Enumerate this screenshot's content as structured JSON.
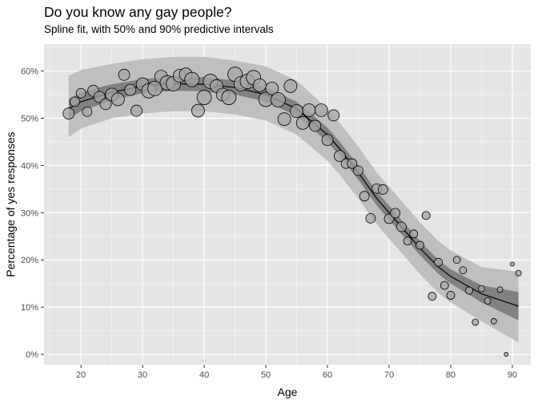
{
  "chart_data": {
    "type": "scatter",
    "title": "Do you know any gay people?",
    "subtitle": "Spline fit, with 50% and 90% predictive intervals",
    "xlabel": "Age",
    "ylabel": "Percentage of yes responses",
    "xlim": [
      14,
      93
    ],
    "ylim": [
      -2.2,
      65.7
    ],
    "x_ticks": [
      20,
      30,
      40,
      50,
      60,
      70,
      80,
      90
    ],
    "x_tick_labels": [
      "20",
      "30",
      "40",
      "50",
      "60",
      "70",
      "80",
      "90"
    ],
    "y_ticks": [
      0,
      10,
      20,
      30,
      40,
      50,
      60
    ],
    "y_tick_labels": [
      "0%",
      "10%",
      "20%",
      "30%",
      "40%",
      "50%",
      "60%"
    ],
    "grid": true,
    "background": "#e5e5e5",
    "grid_color": "#ffffff",
    "point_fill": "#a6a6a6",
    "point_stroke": "#000000",
    "band_50_color": "#7a7a7a",
    "band_90_color": "#bdbdbd",
    "fit_color": "#000000",
    "fit": {
      "x": [
        18,
        20,
        25,
        30,
        35,
        40,
        45,
        50,
        55,
        60,
        62,
        65,
        68,
        70,
        72,
        75,
        78,
        80,
        85,
        91
      ],
      "y": [
        52,
        53.5,
        55.5,
        56.8,
        57.3,
        57.2,
        56.5,
        55,
        52,
        46.5,
        43.5,
        38.5,
        33,
        30,
        27,
        22.5,
        18.5,
        16.5,
        12.8,
        10.2
      ],
      "lo50": [
        50,
        51.5,
        53.8,
        55.3,
        55.8,
        55.7,
        55,
        53.5,
        50.5,
        45,
        42,
        37,
        31.5,
        28.5,
        25.5,
        21,
        17,
        15,
        11,
        7.2
      ],
      "hi50": [
        54,
        55.5,
        57.2,
        58.3,
        58.8,
        58.7,
        58,
        56.5,
        53.5,
        48,
        45,
        40,
        34.5,
        31.5,
        28.5,
        24,
        20,
        18,
        14.6,
        13.2
      ],
      "lo90": [
        46,
        47.8,
        50,
        51,
        51.5,
        51.5,
        50.8,
        49.5,
        46.5,
        41,
        38,
        33,
        27.5,
        24.5,
        21.5,
        17,
        13,
        11,
        7,
        2.5
      ],
      "hi90": [
        59,
        60.2,
        61.5,
        62.5,
        63,
        63,
        62.2,
        61,
        58,
        52,
        49,
        44,
        38.5,
        35.5,
        32.5,
        28,
        24,
        22,
        18.5,
        17.5
      ]
    },
    "points": [
      {
        "x": 18,
        "y": 51,
        "s": 7
      },
      {
        "x": 19,
        "y": 53.5,
        "s": 6
      },
      {
        "x": 20,
        "y": 55.3,
        "s": 6
      },
      {
        "x": 21,
        "y": 51.4,
        "s": 6
      },
      {
        "x": 22,
        "y": 55.8,
        "s": 7
      },
      {
        "x": 23,
        "y": 54.5,
        "s": 7
      },
      {
        "x": 24,
        "y": 53,
        "s": 7
      },
      {
        "x": 25,
        "y": 55,
        "s": 8
      },
      {
        "x": 26,
        "y": 54,
        "s": 8
      },
      {
        "x": 27,
        "y": 59.2,
        "s": 7
      },
      {
        "x": 28,
        "y": 56,
        "s": 7
      },
      {
        "x": 29,
        "y": 51.6,
        "s": 7
      },
      {
        "x": 30,
        "y": 57.2,
        "s": 8
      },
      {
        "x": 31,
        "y": 55.8,
        "s": 9
      },
      {
        "x": 32,
        "y": 56.3,
        "s": 9
      },
      {
        "x": 33,
        "y": 58.8,
        "s": 8
      },
      {
        "x": 34,
        "y": 57.5,
        "s": 9
      },
      {
        "x": 35,
        "y": 57.3,
        "s": 9
      },
      {
        "x": 36,
        "y": 59,
        "s": 8
      },
      {
        "x": 37,
        "y": 59.3,
        "s": 8
      },
      {
        "x": 38,
        "y": 58.2,
        "s": 9
      },
      {
        "x": 39,
        "y": 51.6,
        "s": 8
      },
      {
        "x": 40,
        "y": 54.4,
        "s": 9
      },
      {
        "x": 41,
        "y": 57.8,
        "s": 9
      },
      {
        "x": 42,
        "y": 56.8,
        "s": 8
      },
      {
        "x": 43,
        "y": 55,
        "s": 8
      },
      {
        "x": 44,
        "y": 54.4,
        "s": 9
      },
      {
        "x": 45,
        "y": 59.3,
        "s": 9
      },
      {
        "x": 46,
        "y": 57.3,
        "s": 9
      },
      {
        "x": 47,
        "y": 57.8,
        "s": 9
      },
      {
        "x": 48,
        "y": 58.6,
        "s": 9
      },
      {
        "x": 49,
        "y": 57,
        "s": 8
      },
      {
        "x": 50,
        "y": 54,
        "s": 9
      },
      {
        "x": 51,
        "y": 56.3,
        "s": 8
      },
      {
        "x": 52,
        "y": 53.9,
        "s": 9
      },
      {
        "x": 53,
        "y": 49.8,
        "s": 8
      },
      {
        "x": 54,
        "y": 56.8,
        "s": 8
      },
      {
        "x": 55,
        "y": 51.5,
        "s": 8
      },
      {
        "x": 56,
        "y": 49,
        "s": 8
      },
      {
        "x": 57,
        "y": 51.7,
        "s": 8
      },
      {
        "x": 58,
        "y": 48.4,
        "s": 7
      },
      {
        "x": 59,
        "y": 51.7,
        "s": 8
      },
      {
        "x": 60,
        "y": 45.4,
        "s": 7
      },
      {
        "x": 61,
        "y": 50.6,
        "s": 7
      },
      {
        "x": 62,
        "y": 42,
        "s": 7
      },
      {
        "x": 63,
        "y": 40.4,
        "s": 6
      },
      {
        "x": 64,
        "y": 40.4,
        "s": 6
      },
      {
        "x": 65,
        "y": 38.9,
        "s": 6
      },
      {
        "x": 66,
        "y": 33.5,
        "s": 6
      },
      {
        "x": 67,
        "y": 28.8,
        "s": 6
      },
      {
        "x": 68,
        "y": 35.1,
        "s": 6
      },
      {
        "x": 69,
        "y": 34.9,
        "s": 6
      },
      {
        "x": 70,
        "y": 28.7,
        "s": 6
      },
      {
        "x": 71,
        "y": 29.9,
        "s": 6
      },
      {
        "x": 72,
        "y": 27,
        "s": 6
      },
      {
        "x": 73,
        "y": 24,
        "s": 5
      },
      {
        "x": 74,
        "y": 25.5,
        "s": 5
      },
      {
        "x": 75,
        "y": 23.1,
        "s": 5
      },
      {
        "x": 76,
        "y": 29.4,
        "s": 5
      },
      {
        "x": 77,
        "y": 12.3,
        "s": 5
      },
      {
        "x": 78,
        "y": 19.5,
        "s": 5
      },
      {
        "x": 79,
        "y": 14.6,
        "s": 5
      },
      {
        "x": 80,
        "y": 12.5,
        "s": 5
      },
      {
        "x": 81,
        "y": 20,
        "s": 4.5
      },
      {
        "x": 82,
        "y": 17.8,
        "s": 4.5
      },
      {
        "x": 83,
        "y": 13.5,
        "s": 4.5
      },
      {
        "x": 84,
        "y": 6.8,
        "s": 4
      },
      {
        "x": 85,
        "y": 13.9,
        "s": 4
      },
      {
        "x": 86,
        "y": 11.3,
        "s": 4
      },
      {
        "x": 87,
        "y": 7,
        "s": 3.5
      },
      {
        "x": 88,
        "y": 13.7,
        "s": 3.5
      },
      {
        "x": 89,
        "y": 0,
        "s": 2.5
      },
      {
        "x": 90,
        "y": 19.1,
        "s": 2.5
      },
      {
        "x": 91,
        "y": 17.2,
        "s": 3.5
      }
    ]
  }
}
